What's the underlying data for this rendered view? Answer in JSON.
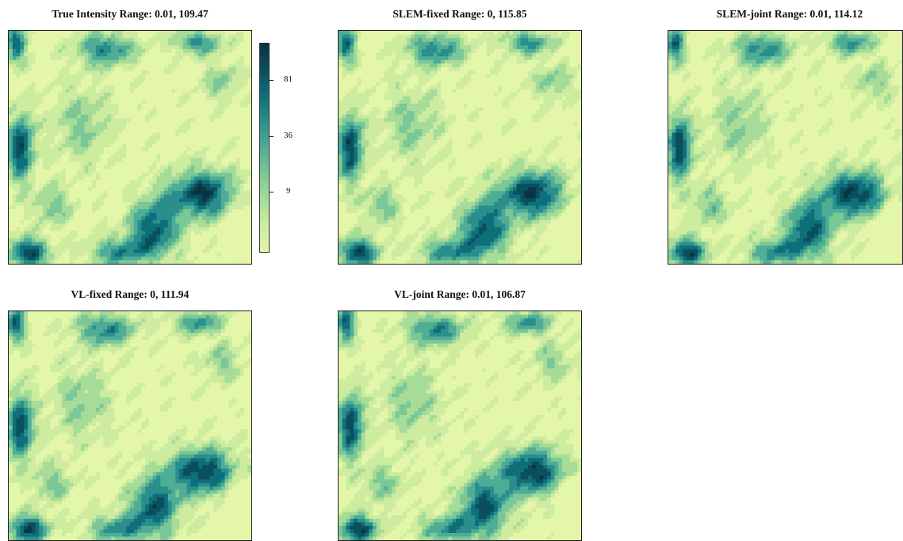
{
  "chart_data": {
    "type": "heatmap",
    "palette": [
      "#e3f6a9",
      "#cdeca0",
      "#a6dc98",
      "#7bc797",
      "#4fad95",
      "#2a8f8c",
      "#0e6e7a",
      "#0b4f5c",
      "#0a3442"
    ],
    "legend": {
      "ticks": [
        {
          "label": "81"
        },
        {
          "label": "36"
        },
        {
          "label": "9"
        }
      ]
    },
    "panels": [
      {
        "title": "True Intensity Range: 0.01, 109.47"
      },
      {
        "title": "SLEM-fixed Range: 0, 115.85"
      },
      {
        "title": "SLEM-joint Range: 0.01, 114.12"
      },
      {
        "title": "VL-fixed Range: 0, 111.94"
      },
      {
        "title": "VL-joint Range: 0.01, 106.87"
      }
    ]
  }
}
